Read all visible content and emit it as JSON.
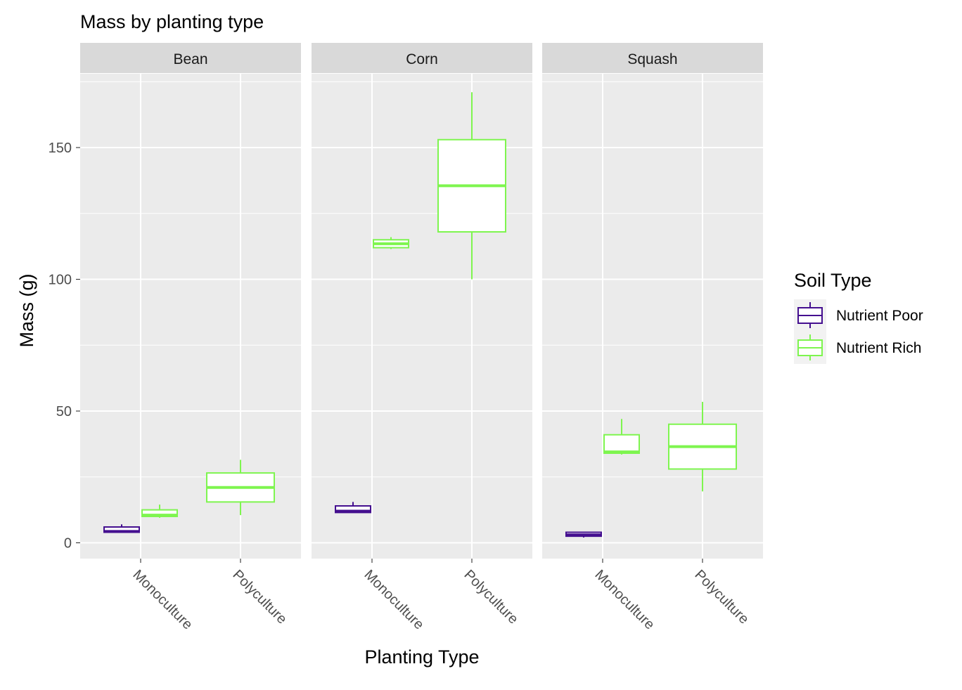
{
  "chart_data": {
    "type": "boxplot",
    "title": "Mass by planting type",
    "xlabel": "Planting Type",
    "ylabel": "Mass (g)",
    "ylim": [
      -6,
      178
    ],
    "y_ticks": [
      0,
      50,
      100,
      150
    ],
    "grid": true,
    "categories": [
      "Monoculture",
      "Polyculture"
    ],
    "panels": [
      "Bean",
      "Corn",
      "Squash"
    ],
    "legend": {
      "title": "Soil Type",
      "position": "right",
      "entries": [
        {
          "name": "Nutrient Poor",
          "color": "#440f8f"
        },
        {
          "name": "Nutrient Rich",
          "color": "#7ef54f"
        }
      ]
    },
    "boxes": [
      {
        "panel": "Bean",
        "category": "Monoculture",
        "series": "Nutrient Poor",
        "min": 4,
        "q1": 4,
        "median": 4.3,
        "q3": 6,
        "max": 7
      },
      {
        "panel": "Bean",
        "category": "Monoculture",
        "series": "Nutrient Rich",
        "min": 9.5,
        "q1": 10,
        "median": 10.5,
        "q3": 12.5,
        "max": 14.5
      },
      {
        "panel": "Bean",
        "category": "Polyculture",
        "series": "Nutrient Rich",
        "min": 10.5,
        "q1": 15.5,
        "median": 21,
        "q3": 26.5,
        "max": 31.5
      },
      {
        "panel": "Corn",
        "category": "Monoculture",
        "series": "Nutrient Poor",
        "min": 11.5,
        "q1": 11.5,
        "median": 12,
        "q3": 14,
        "max": 15.5
      },
      {
        "panel": "Corn",
        "category": "Monoculture",
        "series": "Nutrient Rich",
        "min": 111.5,
        "q1": 112,
        "median": 113.5,
        "q3": 115,
        "max": 116
      },
      {
        "panel": "Corn",
        "category": "Polyculture",
        "series": "Nutrient Rich",
        "min": 100,
        "q1": 118,
        "median": 135.5,
        "q3": 153,
        "max": 171
      },
      {
        "panel": "Squash",
        "category": "Monoculture",
        "series": "Nutrient Poor",
        "min": 2,
        "q1": 2.5,
        "median": 3,
        "q3": 4,
        "max": 4
      },
      {
        "panel": "Squash",
        "category": "Monoculture",
        "series": "Nutrient Rich",
        "min": 33.5,
        "q1": 34,
        "median": 34.5,
        "q3": 41,
        "max": 47
      },
      {
        "panel": "Squash",
        "category": "Polyculture",
        "series": "Nutrient Rich",
        "min": 19.5,
        "q1": 28,
        "median": 36.5,
        "q3": 45,
        "max": 53.5
      }
    ]
  }
}
